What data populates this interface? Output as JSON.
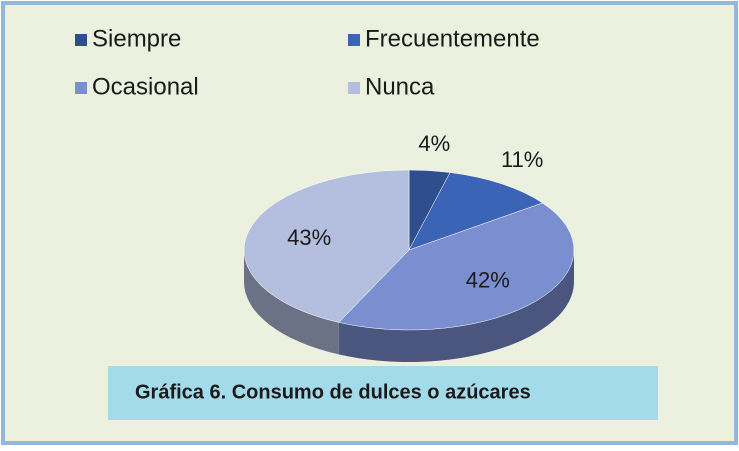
{
  "chart_data": {
    "type": "pie",
    "categories": [
      "Siempre",
      "Frecuentemente",
      "Ocasional",
      "Nunca"
    ],
    "values": [
      4,
      11,
      42,
      43
    ],
    "value_labels": [
      "4%",
      "11%",
      "42%",
      "43%"
    ],
    "colors": [
      "#2e4e8e",
      "#3b63b6",
      "#7b8fd0",
      "#b4bedf"
    ],
    "caption": "Gráfica 6. Consumo de dulces o azúcares"
  }
}
